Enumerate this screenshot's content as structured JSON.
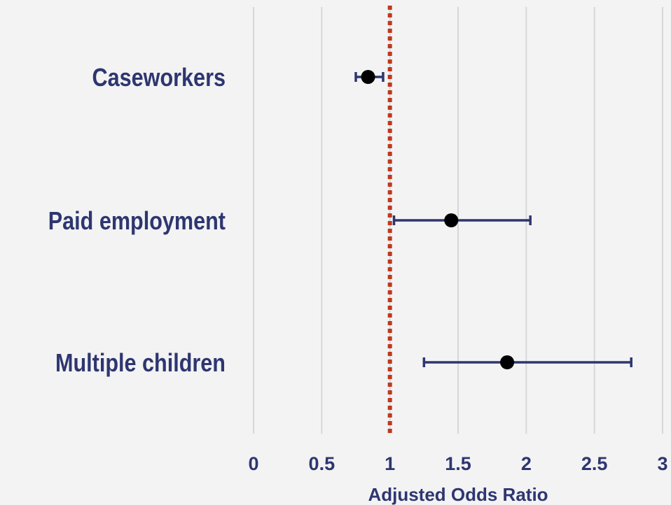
{
  "chart_data": {
    "type": "scatter",
    "subtype": "forest-plot",
    "title": "",
    "xlabel": "Adjusted Odds Ratio",
    "ylabel": "",
    "xlim": [
      0,
      3
    ],
    "xticks": [
      0,
      0.5,
      1,
      1.5,
      2,
      2.5,
      3
    ],
    "xtick_labels": [
      "0",
      "0.5",
      "1",
      "1.5",
      "2",
      "2.5",
      "3"
    ],
    "grid": "vertical",
    "reference_line": {
      "x": 1,
      "style": "dotted",
      "color": "#c0381c"
    },
    "categories": [
      "Caseworkers",
      "Paid employment",
      "Multiple children"
    ],
    "estimates": [
      0.84,
      1.45,
      1.86
    ],
    "ci_lower": [
      0.75,
      1.03,
      1.25
    ],
    "ci_upper": [
      0.95,
      2.03,
      2.77
    ],
    "colors": {
      "text": "#2e3670",
      "error_bar": "#2e3670",
      "point": "#000000",
      "grid": "#d7d7da",
      "background": "#f3f3f4"
    }
  }
}
